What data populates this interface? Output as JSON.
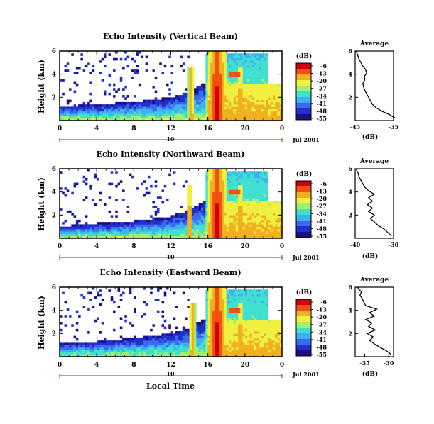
{
  "chart_data": [
    {
      "type": "heatmap",
      "title": "Echo Intensity (Vertical Beam)",
      "ylabel": "Height (km)",
      "x_ticks": [
        "0",
        "4",
        "8",
        "12",
        "16",
        "20",
        "0"
      ],
      "y_ticks": [
        "2",
        "4",
        "6"
      ],
      "xlim": [
        0,
        24
      ],
      "ylim": [
        0,
        6
      ],
      "date_marker": "10",
      "date_label": "Jul 2001",
      "colorbar": {
        "unit": "(dB)",
        "ticks": [
          "-6",
          "-13",
          "-20",
          "-27",
          "-34",
          "-41",
          "-48",
          "-55"
        ]
      },
      "features": [
        {
          "type": "boundary_layer_top_km",
          "x": [
            0,
            4,
            8,
            12,
            14,
            15,
            16,
            24
          ],
          "y": [
            1.2,
            1.4,
            1.6,
            2.0,
            2.5,
            3.0,
            3.3,
            3.3
          ]
        },
        {
          "type": "rain_column",
          "x_hours": [
            14.2,
            17.0,
            19.5
          ],
          "peak_dB": [
            -13,
            -6,
            -13
          ]
        }
      ],
      "profile": {
        "title": "Average",
        "xlabel": "(dB)",
        "x_ticks": [
          "-45",
          "-35"
        ],
        "y_ticks": [
          "2",
          "4",
          "6"
        ],
        "xlim": [
          -45,
          -35
        ],
        "ylim": [
          0,
          6
        ],
        "x": [
          -34.5,
          -36,
          -38,
          -39.5,
          -40.5,
          -41,
          -41.5,
          -42,
          -42.5,
          -42.8,
          -43,
          -42.5,
          -42.6,
          -42,
          -42.3,
          -43,
          -43.5,
          -44,
          -44.3,
          -44.5,
          -44.8
        ],
        "y": [
          0.2,
          0.5,
          0.8,
          1.1,
          1.4,
          1.7,
          2.0,
          2.3,
          2.6,
          2.9,
          3.2,
          3.5,
          3.8,
          4.1,
          4.4,
          4.7,
          5.0,
          5.3,
          5.6,
          5.8,
          6.0
        ]
      }
    },
    {
      "type": "heatmap",
      "title": "Echo Intensity (Northward Beam)",
      "ylabel": "Height (km)",
      "x_ticks": [
        "0",
        "4",
        "8",
        "12",
        "16",
        "20",
        "0"
      ],
      "y_ticks": [
        "2",
        "4",
        "6"
      ],
      "xlim": [
        0,
        24
      ],
      "ylim": [
        0,
        6
      ],
      "date_marker": "10",
      "date_label": "Jul 2001",
      "colorbar": {
        "unit": "(dB)",
        "ticks": [
          "-6",
          "-13",
          "-20",
          "-27",
          "-34",
          "-41",
          "-48",
          "-55"
        ]
      },
      "features": [
        {
          "type": "boundary_layer_top_km",
          "x": [
            0,
            4,
            8,
            12,
            14,
            15,
            16,
            24
          ],
          "y": [
            1.0,
            1.3,
            1.5,
            1.9,
            2.4,
            2.9,
            3.3,
            3.3
          ]
        },
        {
          "type": "rain_column",
          "x_hours": [
            14.0,
            17.0,
            19.5
          ],
          "peak_dB": [
            -13,
            -6,
            -13
          ]
        }
      ],
      "profile": {
        "title": "Average",
        "xlabel": "(dB)",
        "x_ticks": [
          "-40",
          "-30"
        ],
        "y_ticks": [
          "2",
          "4",
          "6"
        ],
        "xlim": [
          -40,
          -30
        ],
        "ylim": [
          0,
          6
        ],
        "x": [
          -30.5,
          -31.5,
          -32.5,
          -34,
          -35,
          -36,
          -35,
          -36.5,
          -35.5,
          -36.8,
          -35.5,
          -36.5,
          -35,
          -36.5,
          -37.5,
          -38,
          -38.5,
          -39,
          -39.2,
          -39.5,
          -39.8
        ],
        "y": [
          0.2,
          0.5,
          0.8,
          1.1,
          1.4,
          1.7,
          2.0,
          2.3,
          2.6,
          2.9,
          3.2,
          3.5,
          3.8,
          4.1,
          4.4,
          4.7,
          5.0,
          5.3,
          5.6,
          5.8,
          6.0
        ]
      }
    },
    {
      "type": "heatmap",
      "title": "Echo Intensity (Eastward Beam)",
      "ylabel": "Height (km)",
      "xlabel": "Local Time",
      "x_ticks": [
        "0",
        "4",
        "8",
        "12",
        "16",
        "20",
        "0"
      ],
      "y_ticks": [
        "2",
        "4",
        "6"
      ],
      "xlim": [
        0,
        24
      ],
      "ylim": [
        0,
        6
      ],
      "date_marker": "10",
      "date_label": "Jul 2001",
      "colorbar": {
        "unit": "(dB)",
        "ticks": [
          "-6",
          "-13",
          "-20",
          "-27",
          "-34",
          "-41",
          "-48",
          "-55"
        ]
      },
      "features": [
        {
          "type": "boundary_layer_top_km",
          "x": [
            0,
            4,
            8,
            12,
            14,
            15,
            16,
            24
          ],
          "y": [
            1.1,
            1.3,
            1.6,
            2.0,
            2.5,
            3.0,
            3.3,
            3.3
          ]
        },
        {
          "type": "rain_column",
          "x_hours": [
            14.3,
            17.0,
            19.5
          ],
          "peak_dB": [
            -13,
            -6,
            -13
          ]
        }
      ],
      "profile": {
        "title": "Average",
        "xlabel": "(dB)",
        "x_ticks": [
          "-35",
          "-30"
        ],
        "y_ticks": [
          "2",
          "4",
          "6"
        ],
        "xlim": [
          -37,
          -29
        ],
        "ylim": [
          0,
          6
        ],
        "x": [
          -29.5,
          -30.5,
          -31.8,
          -33,
          -34,
          -33.2,
          -34.5,
          -32.8,
          -34.2,
          -33.5,
          -34.8,
          -33,
          -34,
          -32.5,
          -34.8,
          -35.2,
          -35.5,
          -36,
          -35.7,
          -36.2,
          -36.5
        ],
        "y": [
          0.2,
          0.5,
          0.8,
          1.1,
          1.4,
          1.7,
          2.0,
          2.3,
          2.6,
          2.9,
          3.2,
          3.5,
          3.8,
          4.1,
          4.4,
          4.7,
          5.0,
          5.3,
          5.6,
          5.8,
          6.0
        ]
      }
    }
  ],
  "palette": [
    "#1a0f8a",
    "#2030c8",
    "#3a6af0",
    "#40b0f0",
    "#40e0d0",
    "#a0f070",
    "#f0f040",
    "#f0b020",
    "#f05010",
    "#d00010"
  ]
}
